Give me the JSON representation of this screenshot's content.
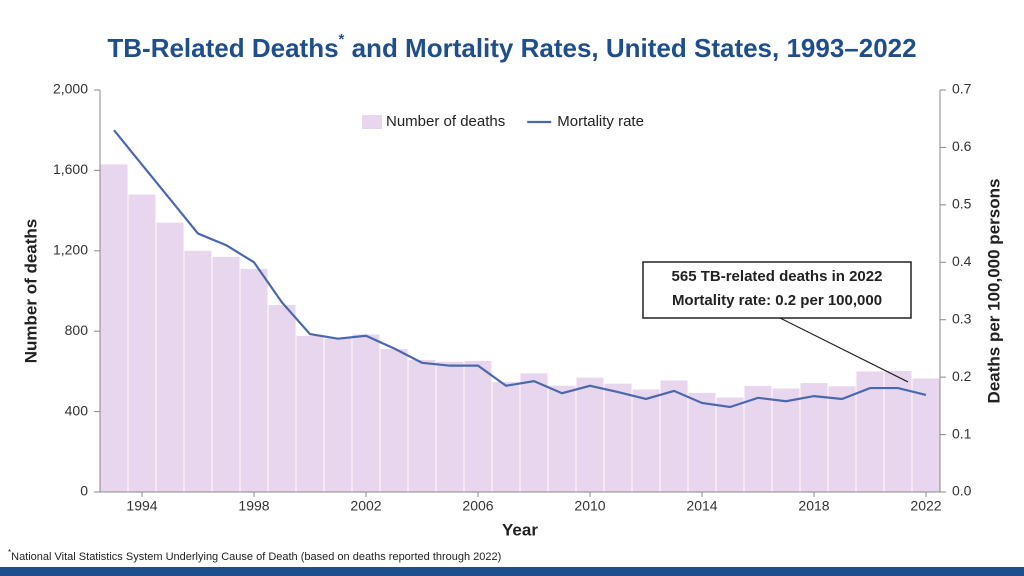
{
  "chart_data": {
    "type": "bar-line",
    "title": "TB-Related Deaths",
    "title_mark": "*",
    "title_rest": " and Mortality Rates, United States, 1993–2022",
    "x_label": "Year",
    "y_label": "Number of deaths",
    "y2_label": "Deaths per 100,000 persons",
    "x": [
      1993,
      1994,
      1995,
      1996,
      1997,
      1998,
      1999,
      2000,
      2001,
      2002,
      2003,
      2004,
      2005,
      2006,
      2007,
      2008,
      2009,
      2010,
      2011,
      2012,
      2013,
      2014,
      2015,
      2016,
      2017,
      2018,
      2019,
      2020,
      2021,
      2022
    ],
    "xlim": [
      1992.5,
      2022.5
    ],
    "xticks": [
      1994,
      1998,
      2002,
      2006,
      2010,
      2014,
      2018,
      2022
    ],
    "ylim": [
      0,
      2000
    ],
    "yticks": [
      0,
      {
        "value": 400,
        "label": "400"
      },
      800,
      {
        "value": 1200,
        "label": "1,200"
      },
      {
        "value": 1600,
        "label": "1,600"
      },
      {
        "value": 2000,
        "label": "2,000"
      }
    ],
    "y2lim": [
      0,
      0.7
    ],
    "y2ticks": [
      {
        "value": 0,
        "label": "0.0"
      },
      0.1,
      0.2,
      0.3,
      0.4,
      0.5,
      0.6,
      0.7
    ],
    "series": [
      {
        "name": "Number of deaths",
        "type": "bar",
        "color": "#e8d6ee",
        "values": [
          1630,
          1480,
          1340,
          1200,
          1170,
          1110,
          930,
          776,
          764,
          784,
          711,
          657,
          648,
          652,
          547,
          590,
          529,
          569,
          539,
          510,
          555,
          493,
          470,
          528,
          515,
          542,
          526,
          600,
          602,
          565
        ]
      },
      {
        "name": "Mortality rate",
        "type": "line",
        "axis": "y2",
        "color": "#4a68ad",
        "values": [
          0.63,
          0.57,
          0.51,
          0.45,
          0.43,
          0.4,
          0.33,
          0.275,
          0.267,
          0.272,
          0.25,
          0.225,
          0.22,
          0.22,
          0.185,
          0.193,
          0.172,
          0.185,
          0.174,
          0.162,
          0.176,
          0.155,
          0.148,
          0.164,
          0.158,
          0.167,
          0.162,
          0.181,
          0.181,
          0.169
        ]
      }
    ],
    "annotation": [
      "565 TB-related deaths in 2022",
      "Mortality rate: 0.2 per 100,000"
    ],
    "footnote_mark": "*",
    "footnote": "National Vital Statistics System Underlying Cause of Death (based on deaths reported through 2022)"
  }
}
